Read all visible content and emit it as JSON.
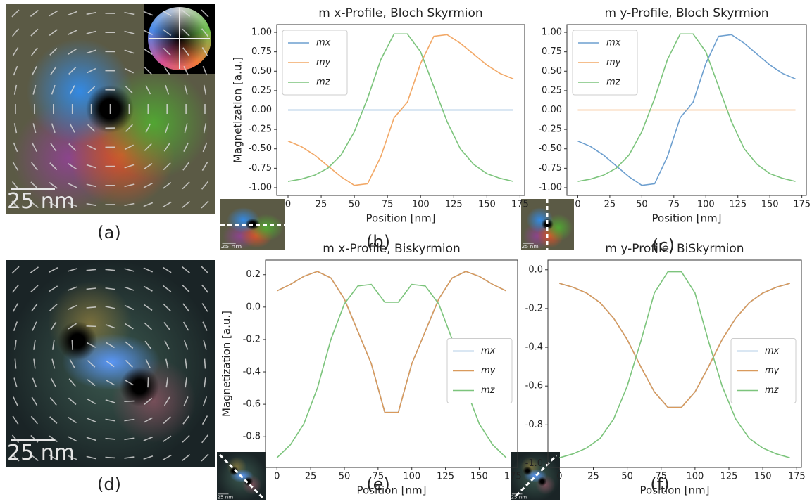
{
  "chart_data": [
    {
      "type": "line",
      "title": "m x-Profile, Bloch Skyrmion",
      "xlabel": "Position [nm]",
      "ylabel": "Magnetization [a.u.]",
      "x": [
        0,
        10,
        20,
        30,
        40,
        50,
        60,
        70,
        80,
        90,
        100,
        110,
        120,
        130,
        140,
        150,
        160,
        170
      ],
      "series": [
        {
          "name": "mx",
          "color": "#6d9fcf",
          "values": [
            0,
            0,
            0,
            0,
            0,
            0,
            0,
            0,
            0,
            0,
            0,
            0,
            0,
            0,
            0,
            0,
            0,
            0
          ]
        },
        {
          "name": "my",
          "color": "#f2a866",
          "values": [
            -0.4,
            -0.47,
            -0.58,
            -0.72,
            -0.86,
            -0.97,
            -0.95,
            -0.6,
            -0.1,
            0.1,
            0.6,
            0.95,
            0.97,
            0.86,
            0.72,
            0.58,
            0.47,
            0.4
          ]
        },
        {
          "name": "mz",
          "color": "#7cc47c",
          "values": [
            -0.92,
            -0.89,
            -0.84,
            -0.75,
            -0.58,
            -0.28,
            0.15,
            0.65,
            0.98,
            0.98,
            0.75,
            0.3,
            -0.15,
            -0.5,
            -0.7,
            -0.82,
            -0.88,
            -0.92
          ]
        }
      ],
      "xlim": [
        -8.5,
        178.5
      ],
      "xticks": [
        0,
        25,
        50,
        75,
        100,
        125,
        150,
        175
      ],
      "ylim": [
        -1.1,
        1.1
      ],
      "yticks": [
        {
          "value": -1,
          "label": "-1.00"
        },
        -0.75,
        {
          "value": -0.5,
          "label": "-0.50"
        },
        -0.25,
        {
          "value": 0,
          "label": "0.00"
        },
        0.25,
        {
          "value": 0.5,
          "label": "0.50"
        },
        0.75,
        {
          "value": 1,
          "label": "1.00"
        }
      ],
      "legend": "upper left"
    },
    {
      "type": "line",
      "title": "m y-Profile, Bloch Skyrmion",
      "xlabel": "Position [nm]",
      "x": [
        0,
        10,
        20,
        30,
        40,
        50,
        60,
        70,
        80,
        90,
        100,
        110,
        120,
        130,
        140,
        150,
        160,
        170
      ],
      "series": [
        {
          "name": "mx",
          "color": "#6d9fcf",
          "values": [
            -0.4,
            -0.47,
            -0.58,
            -0.72,
            -0.86,
            -0.97,
            -0.95,
            -0.6,
            -0.1,
            0.1,
            0.6,
            0.95,
            0.97,
            0.86,
            0.72,
            0.58,
            0.47,
            0.4
          ]
        },
        {
          "name": "my",
          "color": "#f2a866",
          "values": [
            0,
            0,
            0,
            0,
            0,
            0,
            0,
            0,
            0,
            0,
            0,
            0,
            0,
            0,
            0,
            0,
            0,
            0
          ]
        },
        {
          "name": "mz",
          "color": "#7cc47c",
          "values": [
            -0.92,
            -0.89,
            -0.84,
            -0.75,
            -0.58,
            -0.28,
            0.15,
            0.65,
            0.98,
            0.98,
            0.75,
            0.3,
            -0.15,
            -0.5,
            -0.7,
            -0.82,
            -0.88,
            -0.92
          ]
        }
      ],
      "xlim": [
        -8.5,
        178.5
      ],
      "xticks": [
        0,
        25,
        50,
        75,
        100,
        125,
        150,
        175
      ],
      "ylim": [
        -1.1,
        1.1
      ],
      "yticks": [
        {
          "value": -1,
          "label": "-1.00"
        },
        -0.75,
        {
          "value": -0.5,
          "label": "-0.50"
        },
        -0.25,
        {
          "value": 0,
          "label": "0.00"
        },
        0.25,
        {
          "value": 0.5,
          "label": "0.50"
        },
        0.75,
        {
          "value": 1,
          "label": "1.00"
        }
      ],
      "legend": "upper left"
    },
    {
      "type": "line",
      "title": "m x-Profile, Biskyrmion",
      "xlabel": "Position [nm]",
      "ylabel": "Magnetization [a.u.]",
      "x": [
        0,
        10,
        20,
        30,
        40,
        50,
        60,
        70,
        80,
        90,
        100,
        110,
        120,
        130,
        140,
        150,
        160,
        170
      ],
      "series": [
        {
          "name": "mx",
          "color": "#6d9fcf",
          "values": [
            0.1,
            0.14,
            0.19,
            0.22,
            0.18,
            0.05,
            -0.15,
            -0.35,
            -0.65,
            -0.65,
            -0.35,
            -0.15,
            0.05,
            0.18,
            0.22,
            0.19,
            0.14,
            0.1
          ]
        },
        {
          "name": "my",
          "color": "#d99a5c",
          "values": [
            0.1,
            0.14,
            0.19,
            0.22,
            0.18,
            0.05,
            -0.15,
            -0.35,
            -0.65,
            -0.65,
            -0.35,
            -0.15,
            0.05,
            0.18,
            0.22,
            0.19,
            0.14,
            0.1
          ]
        },
        {
          "name": "mz",
          "color": "#7cc47c",
          "values": [
            -0.93,
            -0.85,
            -0.72,
            -0.5,
            -0.2,
            0.02,
            0.13,
            0.14,
            0.03,
            0.03,
            0.14,
            0.13,
            0.02,
            -0.2,
            -0.5,
            -0.72,
            -0.85,
            -0.93
          ]
        }
      ],
      "xlim": [
        -8.5,
        178.5
      ],
      "xticks": [
        0,
        25,
        50,
        75,
        100,
        125,
        150,
        175
      ],
      "ylim": [
        -0.99,
        0.29
      ],
      "yticks": [
        -0.8,
        -0.6,
        -0.4,
        -0.2,
        {
          "value": 0,
          "label": "0.0"
        },
        0.2
      ],
      "legend": "center right"
    },
    {
      "type": "line",
      "title": "m y-Profile, BiSkyrmion",
      "xlabel": "Position [nm]",
      "x": [
        0,
        10,
        20,
        30,
        40,
        50,
        60,
        70,
        80,
        90,
        100,
        110,
        120,
        130,
        140,
        150,
        160,
        170
      ],
      "series": [
        {
          "name": "mx",
          "color": "#6d9fcf",
          "values": [
            -0.07,
            -0.09,
            -0.12,
            -0.17,
            -0.25,
            -0.36,
            -0.5,
            -0.63,
            -0.71,
            -0.71,
            -0.63,
            -0.5,
            -0.36,
            -0.25,
            -0.17,
            -0.12,
            -0.09,
            -0.07
          ]
        },
        {
          "name": "my",
          "color": "#d99a5c",
          "values": [
            -0.07,
            -0.09,
            -0.12,
            -0.17,
            -0.25,
            -0.36,
            -0.5,
            -0.63,
            -0.71,
            -0.71,
            -0.63,
            -0.5,
            -0.36,
            -0.25,
            -0.17,
            -0.12,
            -0.09,
            -0.07
          ]
        },
        {
          "name": "mz",
          "color": "#7cc47c",
          "values": [
            -0.97,
            -0.95,
            -0.92,
            -0.87,
            -0.77,
            -0.6,
            -0.37,
            -0.12,
            -0.01,
            -0.01,
            -0.12,
            -0.37,
            -0.6,
            -0.77,
            -0.87,
            -0.92,
            -0.95,
            -0.97
          ]
        }
      ],
      "xlim": [
        -8.5,
        178.5
      ],
      "xticks": [
        0,
        25,
        50,
        75,
        100,
        125,
        150,
        175
      ],
      "ylim": [
        -1.02,
        0.05
      ],
      "yticks": [
        {
          "value": -1,
          "label": "-1.0"
        },
        -0.8,
        -0.6,
        -0.4,
        -0.2,
        {
          "value": 0,
          "label": "0.0"
        }
      ],
      "legend": "center right"
    }
  ],
  "panel_labels": [
    "(a)",
    "(b)",
    "(c)",
    "(d)",
    "(e)",
    "(f)"
  ],
  "scale_bar": "25 nm"
}
